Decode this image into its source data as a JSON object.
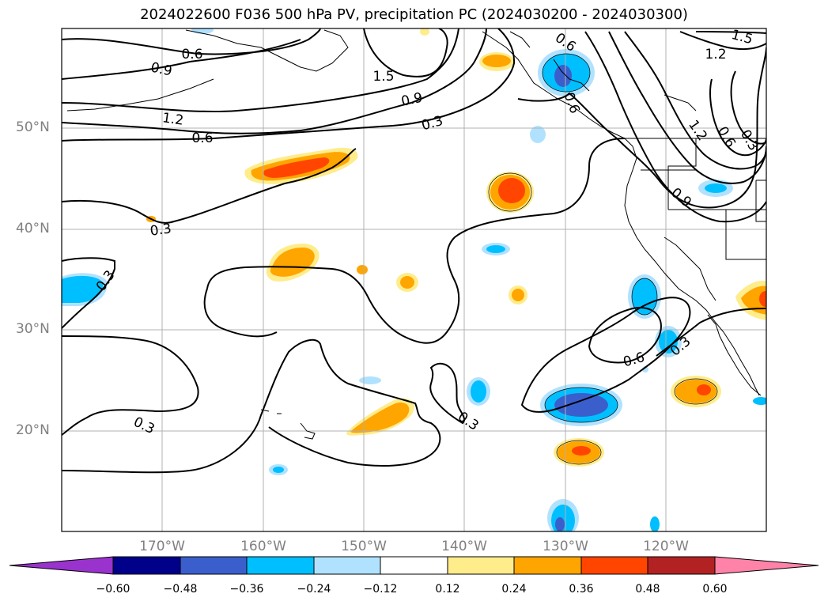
{
  "title": "2024022600 F036 500 hPa PV, precipitation PC (2024030200 - 2024030300)",
  "latitude_labels": [
    "50°N",
    "40°N",
    "30°N",
    "20°N"
  ],
  "longitude_labels": [
    "170°W",
    "160°W",
    "150°W",
    "140°W",
    "130°W",
    "120°W"
  ],
  "contour_labels": [
    "0.6",
    "0.9",
    "1.2",
    "0.6",
    "1.5",
    "0.9",
    "0.3",
    "1.5",
    "1.2",
    "0.6",
    "0.6",
    "1.2",
    "0.6",
    "0.3",
    "0.9",
    "0.3",
    "0.3",
    "0.3",
    "0.3",
    "0.6",
    "0.3"
  ],
  "colorbar": {
    "ticks": [
      "−0.60",
      "−0.48",
      "−0.36",
      "−0.24",
      "−0.12",
      "0.12",
      "0.24",
      "0.36",
      "0.48",
      "0.60"
    ],
    "colors": [
      "#9a32cd",
      "#00008b",
      "#3a5fcd",
      "#00bfff",
      "#b0e2ff",
      "#ffffff",
      "#ffec8b",
      "#ffa500",
      "#ff4500",
      "#b22222",
      "#ff83a8"
    ]
  }
}
